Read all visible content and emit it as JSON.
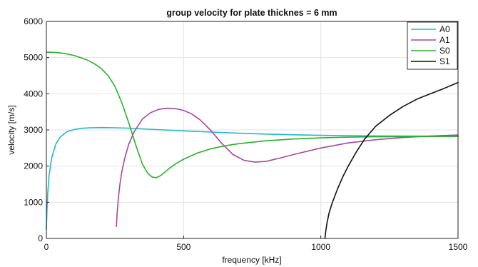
{
  "chart_data": {
    "type": "line",
    "title": "group velocity for plate thicknes = 6 mm",
    "xlabel": "frequency [kHz]",
    "ylabel": "velocity [m/s]",
    "xlim": [
      0,
      1500
    ],
    "ylim": [
      0,
      6000
    ],
    "xticks": [
      0,
      500,
      1000,
      1500
    ],
    "yticks": [
      0,
      1000,
      2000,
      3000,
      4000,
      5000,
      6000
    ],
    "grid": true,
    "legend_position": "top-right",
    "series": [
      {
        "name": "A0",
        "color": "#1fb8c8",
        "x": [
          0,
          2,
          5,
          10,
          20,
          35,
          50,
          75,
          100,
          130,
          160,
          200,
          250,
          300,
          400,
          500,
          600,
          700,
          800,
          900,
          1000,
          1100,
          1200,
          1300,
          1400,
          1500
        ],
        "y": [
          250,
          750,
          1250,
          1750,
          2250,
          2620,
          2800,
          2950,
          3010,
          3045,
          3060,
          3065,
          3060,
          3050,
          3010,
          2975,
          2940,
          2910,
          2885,
          2865,
          2850,
          2840,
          2835,
          2830,
          2828,
          2826
        ]
      },
      {
        "name": "A1",
        "color": "#a8479c",
        "x": [
          255,
          258,
          262,
          268,
          275,
          285,
          300,
          320,
          350,
          380,
          410,
          440,
          470,
          500,
          530,
          560,
          600,
          640,
          680,
          720,
          760,
          800,
          850,
          900,
          1000,
          1100,
          1200,
          1300,
          1400,
          1500
        ],
        "y": [
          330,
          700,
          1100,
          1500,
          1850,
          2200,
          2600,
          2950,
          3300,
          3480,
          3570,
          3600,
          3590,
          3540,
          3440,
          3280,
          2980,
          2620,
          2320,
          2160,
          2110,
          2130,
          2220,
          2320,
          2500,
          2640,
          2730,
          2790,
          2830,
          2860
        ]
      },
      {
        "name": "S0",
        "color": "#2ab02a",
        "x": [
          0,
          25,
          50,
          75,
          100,
          125,
          150,
          175,
          200,
          225,
          250,
          275,
          300,
          325,
          350,
          370,
          385,
          400,
          415,
          430,
          450,
          475,
          500,
          550,
          600,
          650,
          700,
          800,
          900,
          1000,
          1100,
          1200,
          1300,
          1400,
          1500
        ],
        "y": [
          5150,
          5145,
          5130,
          5100,
          5060,
          5000,
          4930,
          4830,
          4700,
          4500,
          4200,
          3750,
          3200,
          2600,
          2050,
          1800,
          1700,
          1680,
          1730,
          1820,
          1950,
          2080,
          2190,
          2360,
          2480,
          2560,
          2620,
          2700,
          2750,
          2780,
          2800,
          2810,
          2815,
          2818,
          2820
        ]
      },
      {
        "name": "S1",
        "color": "#111111",
        "x": [
          1015,
          1018,
          1022,
          1030,
          1040,
          1060,
          1080,
          1100,
          1130,
          1160,
          1200,
          1250,
          1300,
          1350,
          1400,
          1450,
          1500
        ],
        "y": [
          0,
          200,
          400,
          700,
          950,
          1350,
          1700,
          2000,
          2400,
          2750,
          3100,
          3400,
          3650,
          3850,
          4000,
          4150,
          4310
        ]
      }
    ]
  }
}
